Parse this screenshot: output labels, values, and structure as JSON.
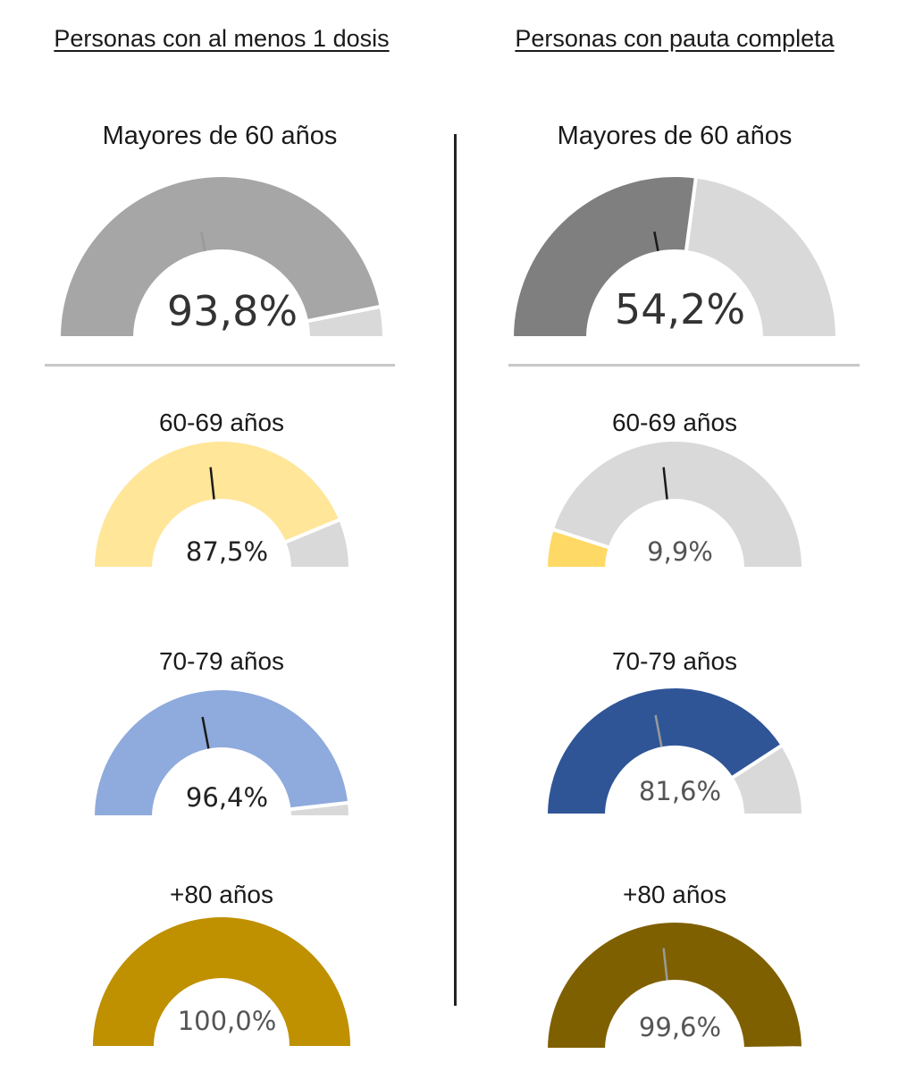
{
  "columns": [
    {
      "title": "Personas con al menos 1 dosis"
    },
    {
      "title": "Personas con pauta completa"
    }
  ],
  "chart_data": [
    {
      "type": "gauge",
      "column": 0,
      "title": "Mayores de 60 años",
      "value": 93.8,
      "label": "93,8%",
      "fill": "#a6a6a6",
      "rest": "#d9d9d9",
      "label_color": "#333333"
    },
    {
      "type": "gauge",
      "column": 0,
      "title": "60-69 años",
      "value": 87.5,
      "label": "87,5%",
      "fill": "#ffe699",
      "rest": "#d9d9d9",
      "label_color": "#222222"
    },
    {
      "type": "gauge",
      "column": 0,
      "title": "70-79 años",
      "value": 96.4,
      "label": "96,4%",
      "fill": "#8faadc",
      "rest": "#d9d9d9",
      "label_color": "#222222"
    },
    {
      "type": "gauge",
      "column": 0,
      "title": "+80 años",
      "value": 100.0,
      "label": "100,0%",
      "fill": "#bf9000",
      "rest": "#d9d9d9",
      "label_color": "#555555"
    },
    {
      "type": "gauge",
      "column": 1,
      "title": "Mayores de 60 años",
      "value": 54.2,
      "label": "54,2%",
      "fill": "#7f7f7f",
      "rest": "#d9d9d9",
      "label_color": "#333333"
    },
    {
      "type": "gauge",
      "column": 1,
      "title": "60-69 años",
      "value": 9.9,
      "label": "9,9%",
      "fill": "#ffd966",
      "rest": "#d9d9d9",
      "label_color": "#555555"
    },
    {
      "type": "gauge",
      "column": 1,
      "title": "70-79 años",
      "value": 81.6,
      "label": "81,6%",
      "fill": "#2f5597",
      "rest": "#d9d9d9",
      "label_color": "#555555"
    },
    {
      "type": "gauge",
      "column": 1,
      "title": "+80 años",
      "value": 99.6,
      "label": "99,6%",
      "fill": "#7f6000",
      "rest": "#d9d9d9",
      "label_color": "#555555"
    }
  ]
}
